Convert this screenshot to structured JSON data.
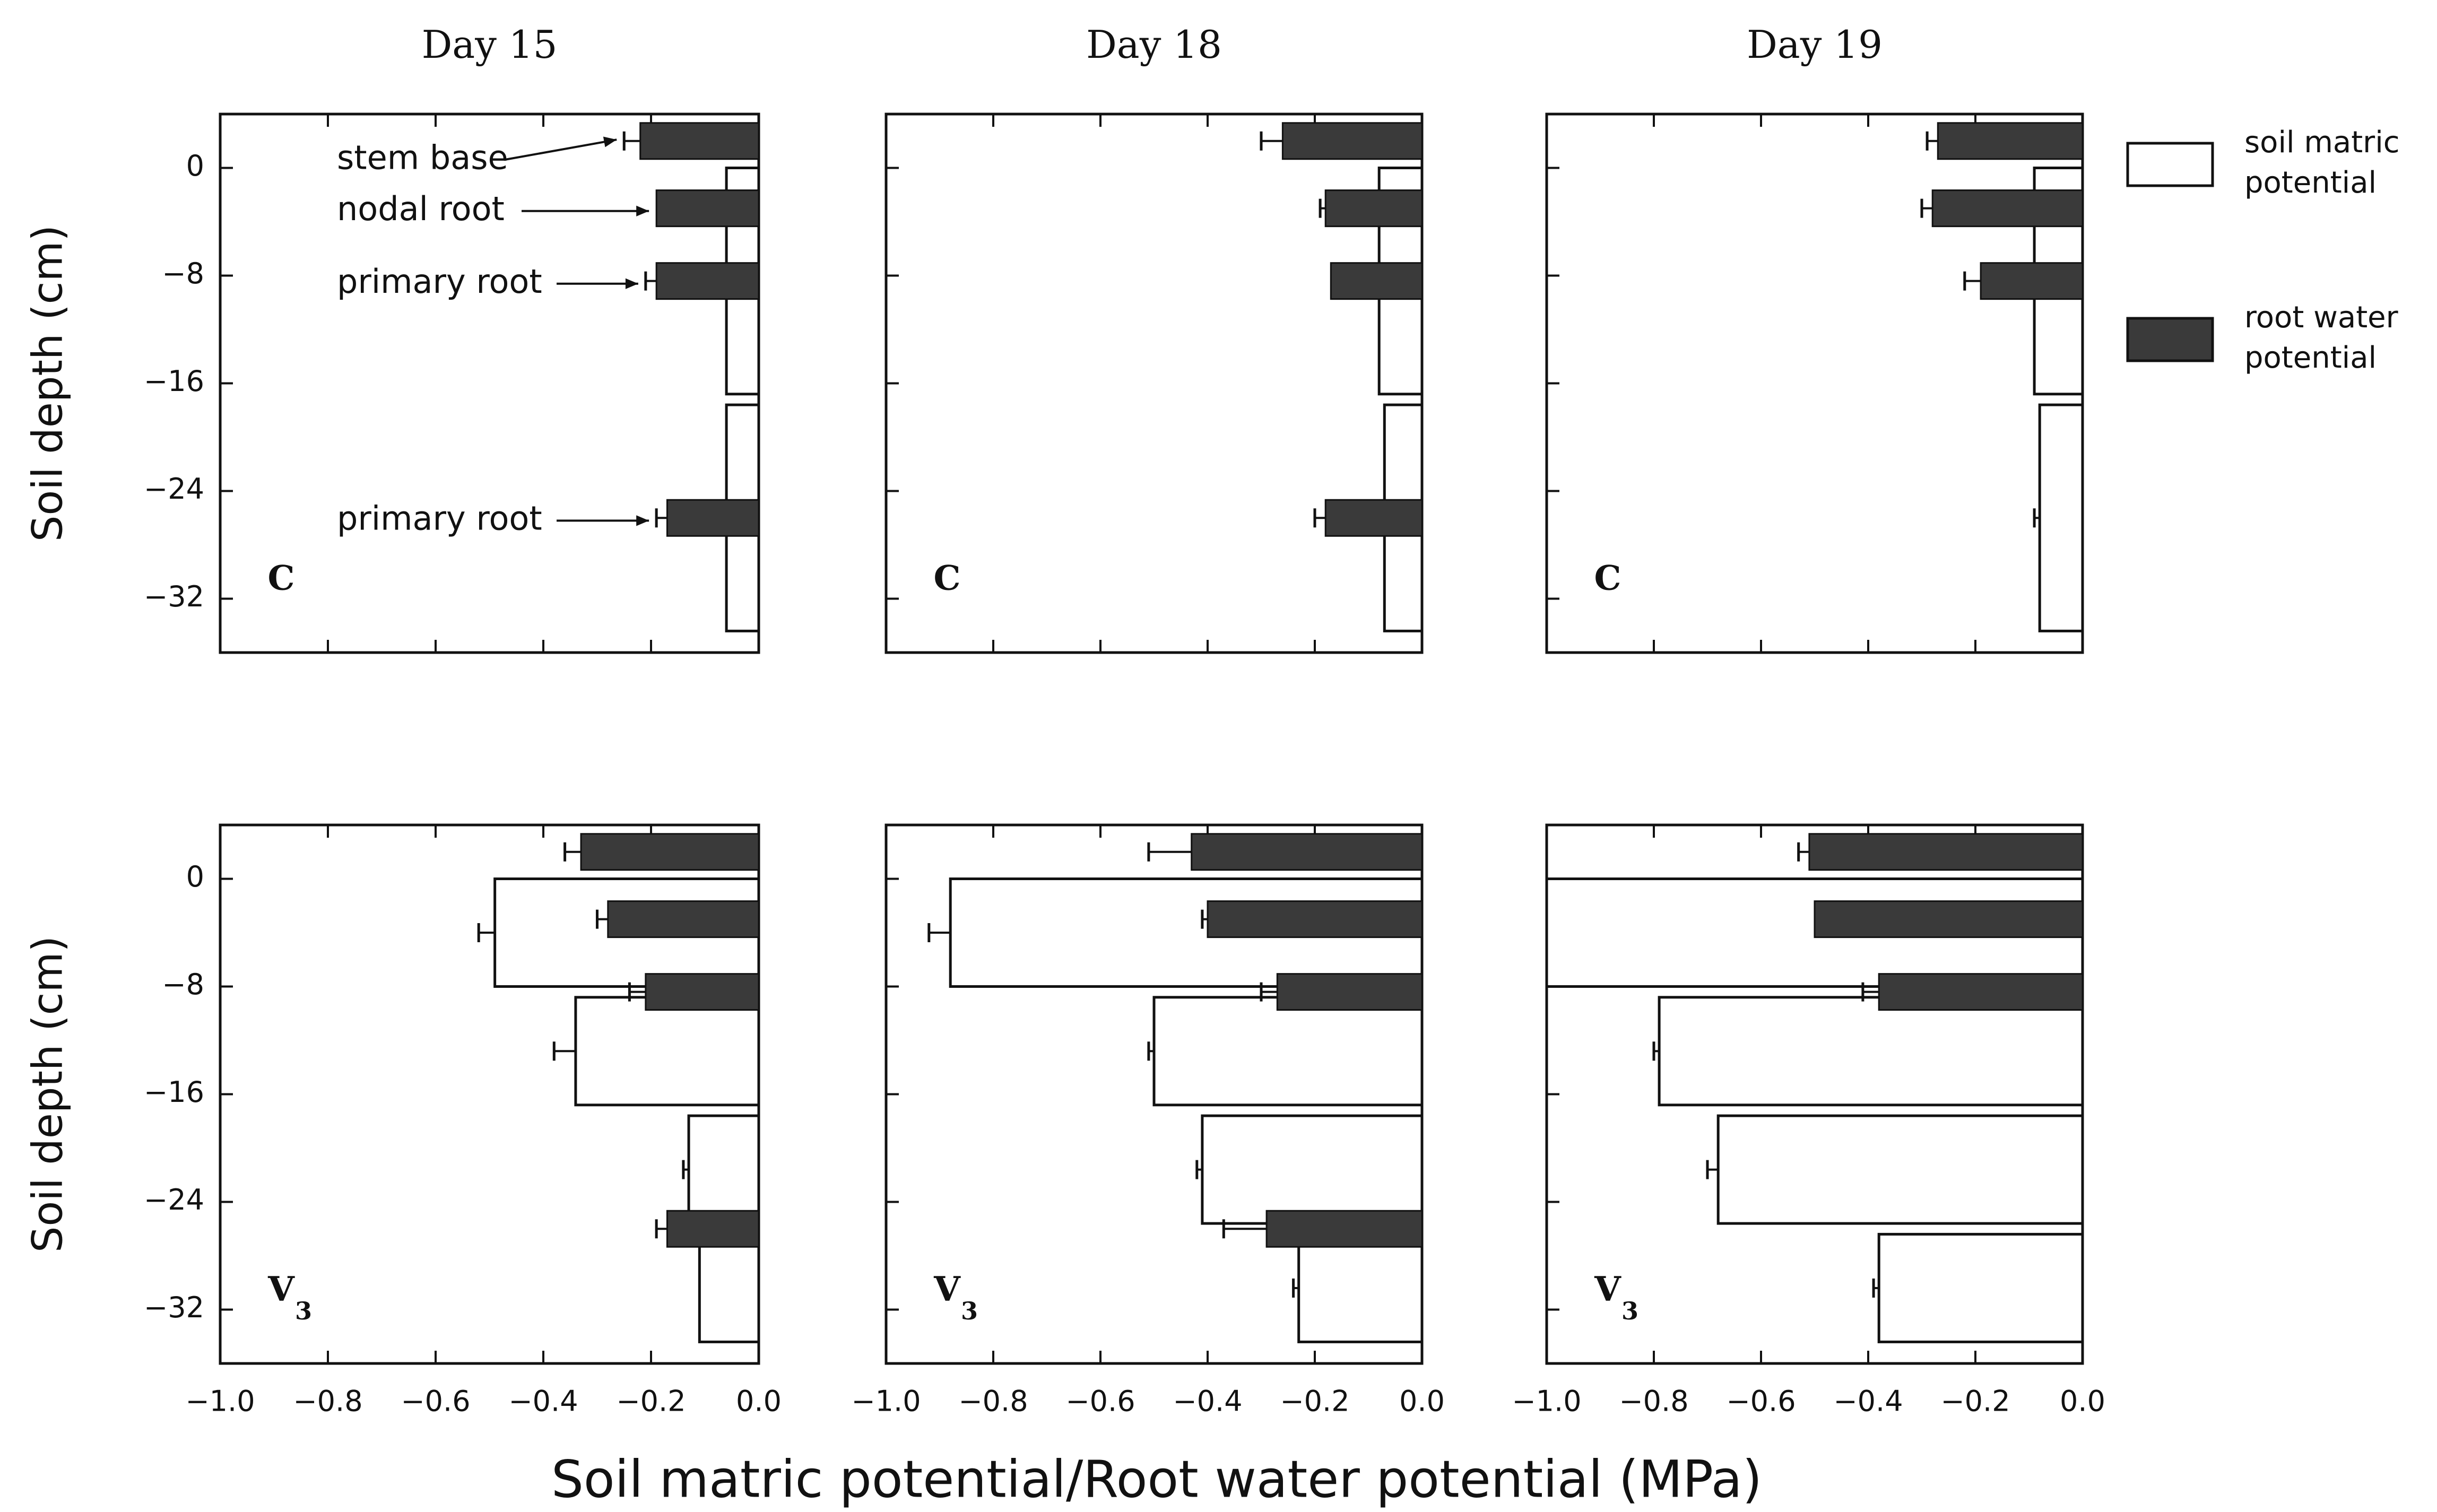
{
  "chart_data": {
    "type": "bar",
    "orientation": "horizontal",
    "xlabel": "Soil matric potential/Root water potential (MPa)",
    "ylabel": "Soil depth (cm)",
    "xlim": [
      -1.0,
      0.0
    ],
    "ylim": [
      -36,
      4
    ],
    "xticks": [
      -1.0,
      -0.8,
      -0.6,
      -0.4,
      -0.2,
      0.0
    ],
    "xtick_labels": [
      "−1.0",
      "−0.8",
      "−0.6",
      "−0.4",
      "−0.2",
      "0.0"
    ],
    "yticks": [
      0,
      -8,
      -16,
      -24,
      -32
    ],
    "ytick_labels": [
      "0",
      "−8",
      "−16",
      "−24",
      "−32"
    ],
    "legend": {
      "position": "right",
      "entries": [
        {
          "label_line1": "soil matric",
          "label_line2": "potential",
          "fill": "#ffffff"
        },
        {
          "label_line1": "root water",
          "label_line2": "potential",
          "fill": "#3a3a3a"
        }
      ]
    },
    "columns": [
      "Day 15",
      "Day 18",
      "Day 19"
    ],
    "panels": [
      {
        "row": 0,
        "col": 0,
        "treatment": "C",
        "subscript": "",
        "soil": [
          {
            "top": 0,
            "bottom": -16.8,
            "value": -0.06,
            "err": 0
          },
          {
            "top": -17.6,
            "bottom": -34.4,
            "value": -0.06,
            "err": 0
          }
        ],
        "root": [
          {
            "depth": 2,
            "value": -0.22,
            "err": 0.03
          },
          {
            "depth": -3,
            "value": -0.19,
            "err": 0
          },
          {
            "depth": -8.4,
            "value": -0.19,
            "err": 0.02
          },
          {
            "depth": -26,
            "value": -0.17,
            "err": 0.02
          }
        ],
        "annotations": [
          {
            "text": "stem base",
            "depth": 0.6,
            "arrow_to_depth": 2.1
          },
          {
            "text": "nodal root",
            "depth": -3.2,
            "arrow_to_depth": -3.2
          },
          {
            "text": "primary root",
            "depth": -8.6,
            "arrow_to_depth": -8.6
          },
          {
            "text": "primary root",
            "depth": -26.2,
            "arrow_to_depth": -26.2
          }
        ]
      },
      {
        "row": 0,
        "col": 1,
        "treatment": "C",
        "subscript": "",
        "soil": [
          {
            "top": 0,
            "bottom": -16.8,
            "value": -0.08,
            "err": 0
          },
          {
            "top": -17.6,
            "bottom": -34.4,
            "value": -0.07,
            "err": 0
          }
        ],
        "root": [
          {
            "depth": 2,
            "value": -0.26,
            "err": 0.04
          },
          {
            "depth": -3,
            "value": -0.18,
            "err": 0.01
          },
          {
            "depth": -8.4,
            "value": -0.17,
            "err": 0
          },
          {
            "depth": -26,
            "value": -0.18,
            "err": 0.02
          }
        ],
        "annotations": []
      },
      {
        "row": 0,
        "col": 2,
        "treatment": "C",
        "subscript": "",
        "soil": [
          {
            "top": 0,
            "bottom": -16.8,
            "value": -0.09,
            "err": 0
          },
          {
            "top": -17.6,
            "bottom": -34.4,
            "value": -0.08,
            "err": 0.01
          }
        ],
        "root": [
          {
            "depth": 2,
            "value": -0.27,
            "err": 0.02
          },
          {
            "depth": -3,
            "value": -0.28,
            "err": 0.02
          },
          {
            "depth": -8.4,
            "value": -0.19,
            "err": 0.03
          }
        ],
        "annotations": []
      },
      {
        "row": 1,
        "col": 0,
        "treatment": "V",
        "subscript": "3",
        "soil": [
          {
            "top": 0,
            "bottom": -8.0,
            "value": -0.49,
            "err": 0.03
          },
          {
            "top": -8.8,
            "bottom": -16.8,
            "value": -0.34,
            "err": 0.04
          },
          {
            "top": -17.6,
            "bottom": -25.6,
            "value": -0.13,
            "err": 0.01
          },
          {
            "top": -27.2,
            "bottom": -34.4,
            "value": -0.11,
            "err": 0
          }
        ],
        "root": [
          {
            "depth": 2,
            "value": -0.33,
            "err": 0.03
          },
          {
            "depth": -3,
            "value": -0.28,
            "err": 0.02
          },
          {
            "depth": -8.4,
            "value": -0.21,
            "err": 0.03
          },
          {
            "depth": -26,
            "value": -0.17,
            "err": 0.02
          }
        ],
        "annotations": []
      },
      {
        "row": 1,
        "col": 1,
        "treatment": "V",
        "subscript": "3",
        "soil": [
          {
            "top": 0,
            "bottom": -8.0,
            "value": -0.88,
            "err": 0.04
          },
          {
            "top": -8.8,
            "bottom": -16.8,
            "value": -0.5,
            "err": 0.01
          },
          {
            "top": -17.6,
            "bottom": -25.6,
            "value": -0.41,
            "err": 0.01
          },
          {
            "top": -26.4,
            "bottom": -34.4,
            "value": -0.23,
            "err": 0.01
          }
        ],
        "root": [
          {
            "depth": 2,
            "value": -0.43,
            "err": 0.08
          },
          {
            "depth": -3,
            "value": -0.4,
            "err": 0.01
          },
          {
            "depth": -8.4,
            "value": -0.27,
            "err": 0.03
          },
          {
            "depth": -26,
            "value": -0.29,
            "err": 0.08
          }
        ],
        "annotations": []
      },
      {
        "row": 1,
        "col": 2,
        "treatment": "V",
        "subscript": "3",
        "soil": [
          {
            "top": 0,
            "bottom": -8.0,
            "value": -1.0,
            "err": 0
          },
          {
            "top": -8.8,
            "bottom": -16.8,
            "value": -0.79,
            "err": 0.01
          },
          {
            "top": -17.6,
            "bottom": -25.6,
            "value": -0.68,
            "err": 0.02
          },
          {
            "top": -26.4,
            "bottom": -34.4,
            "value": -0.38,
            "err": 0.01
          }
        ],
        "root": [
          {
            "depth": 2,
            "value": -0.51,
            "err": 0.02
          },
          {
            "depth": -3,
            "value": -0.5,
            "err": 0
          },
          {
            "depth": -8.4,
            "value": -0.38,
            "err": 0.03
          }
        ],
        "annotations": []
      }
    ]
  }
}
